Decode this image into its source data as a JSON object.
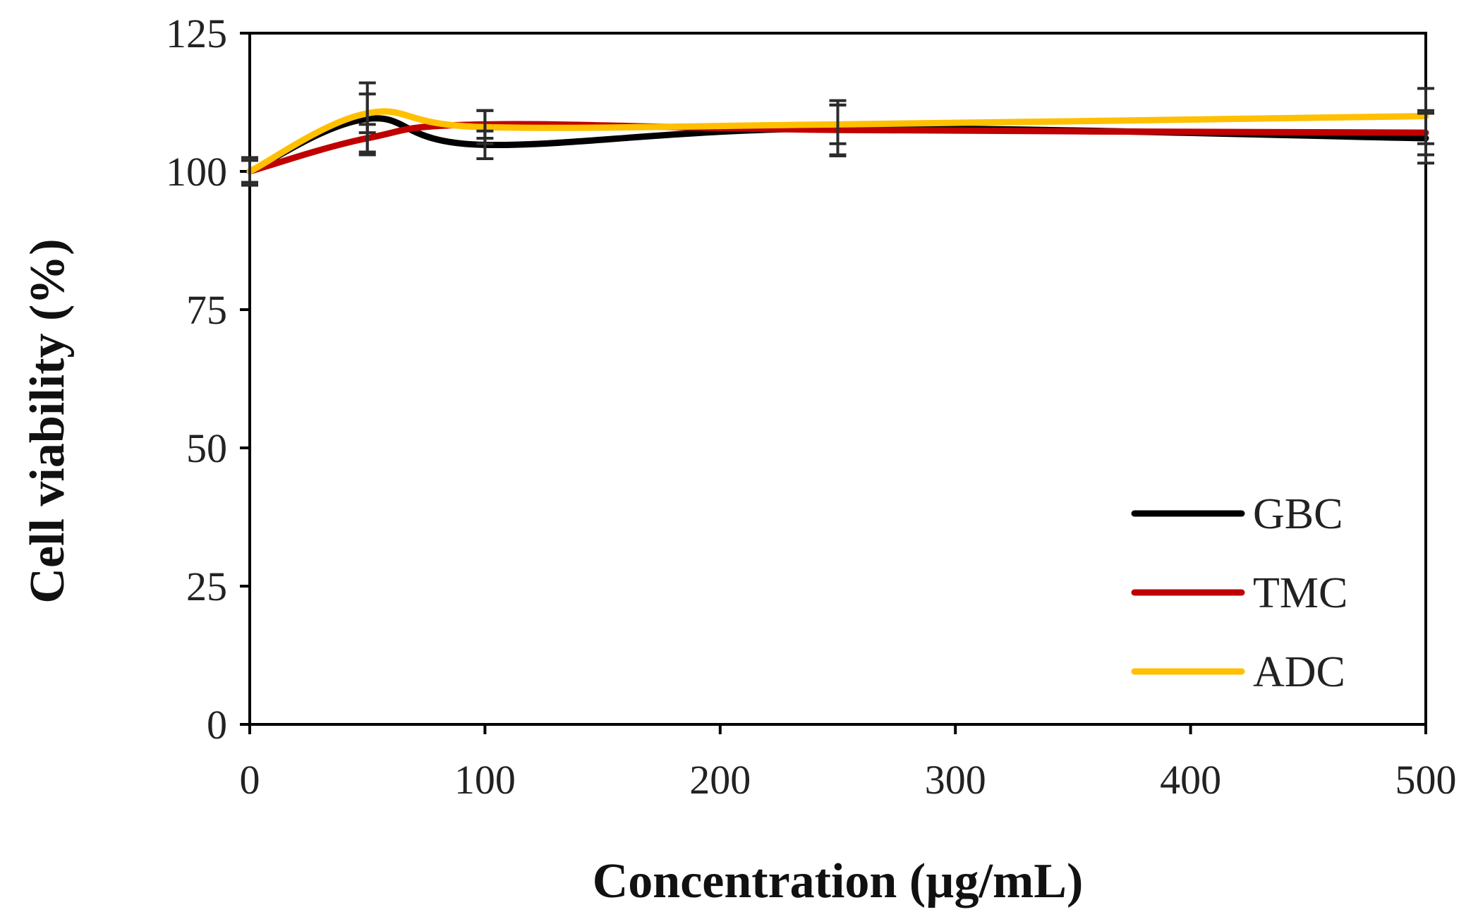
{
  "chart_data": {
    "type": "line",
    "title": "",
    "xlabel": "Concentration (µg/mL)",
    "ylabel": "Cell viability (%)",
    "xlim": [
      0,
      500
    ],
    "ylim": [
      0,
      125
    ],
    "xticks": [
      0,
      100,
      200,
      300,
      400,
      500
    ],
    "xtick_labels": [
      "0",
      "100",
      "200",
      "300",
      "400",
      "500"
    ],
    "yticks": [
      0,
      25,
      50,
      75,
      100,
      125
    ],
    "ytick_labels": [
      "0",
      "25",
      "50",
      "75",
      "100",
      "125"
    ],
    "grid": false,
    "legend_position": "bottom-right",
    "x": [
      0,
      50,
      100,
      250,
      500
    ],
    "series": [
      {
        "name": "GBC",
        "color": "#000000",
        "values": [
          100,
          109.5,
          104.8,
          107.8,
          106.0
        ],
        "errors": [
          2.5,
          6.5,
          2.5,
          5.0,
          4.5
        ]
      },
      {
        "name": "TMC",
        "color": "#c00000",
        "values": [
          100,
          106.0,
          108.5,
          107.5,
          107.0
        ],
        "errors": [
          2.0,
          2.5,
          2.5,
          4.5,
          4.0
        ]
      },
      {
        "name": "ADC",
        "color": "#ffc000",
        "values": [
          100,
          110.5,
          108.0,
          108.5,
          110.0
        ],
        "errors": [
          2.0,
          3.5,
          3.0,
          3.5,
          5.0
        ]
      }
    ]
  }
}
